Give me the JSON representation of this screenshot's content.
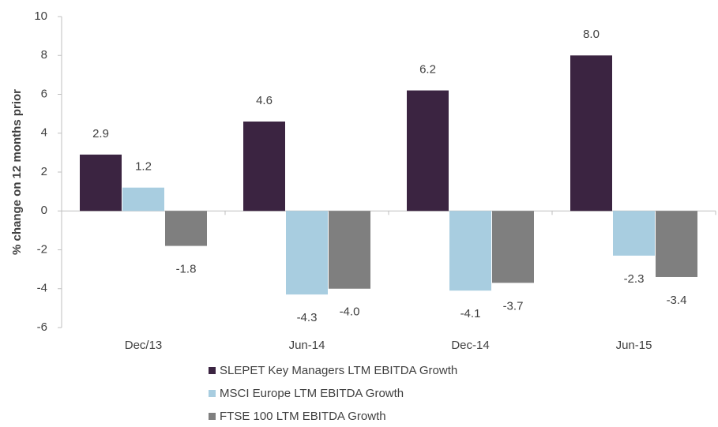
{
  "chart_data": {
    "type": "bar",
    "y_label": "% change on 12 months prior",
    "categories": [
      "Dec/13",
      "Jun-14",
      "Dec-14",
      "Jun-15"
    ],
    "series": [
      {
        "name": "SLEPET Key Managers LTM EBITDA Growth",
        "color": "#3b2441",
        "values": [
          2.9,
          4.6,
          6.2,
          8.0
        ],
        "value_labels": [
          "2.9",
          "4.6",
          "6.2",
          "8.0"
        ]
      },
      {
        "name": "MSCI Europe LTM EBITDA Growth",
        "color": "#a8cde0",
        "values": [
          1.2,
          -4.3,
          -4.1,
          -2.3
        ],
        "value_labels": [
          "1.2",
          "-4.3",
          "-4.1",
          "-2.3"
        ]
      },
      {
        "name": "FTSE 100 LTM EBITDA Growth",
        "color": "#7f7f7f",
        "values": [
          -1.8,
          -4.0,
          -3.7,
          -3.4
        ],
        "value_labels": [
          "-1.8",
          "-4.0",
          "-3.7",
          "-3.4"
        ]
      }
    ],
    "ylim": [
      -6,
      10
    ],
    "yticks": [
      -6,
      -4,
      -2,
      0,
      2,
      4,
      6,
      8,
      10
    ],
    "grid": false,
    "legend": "bottom"
  }
}
